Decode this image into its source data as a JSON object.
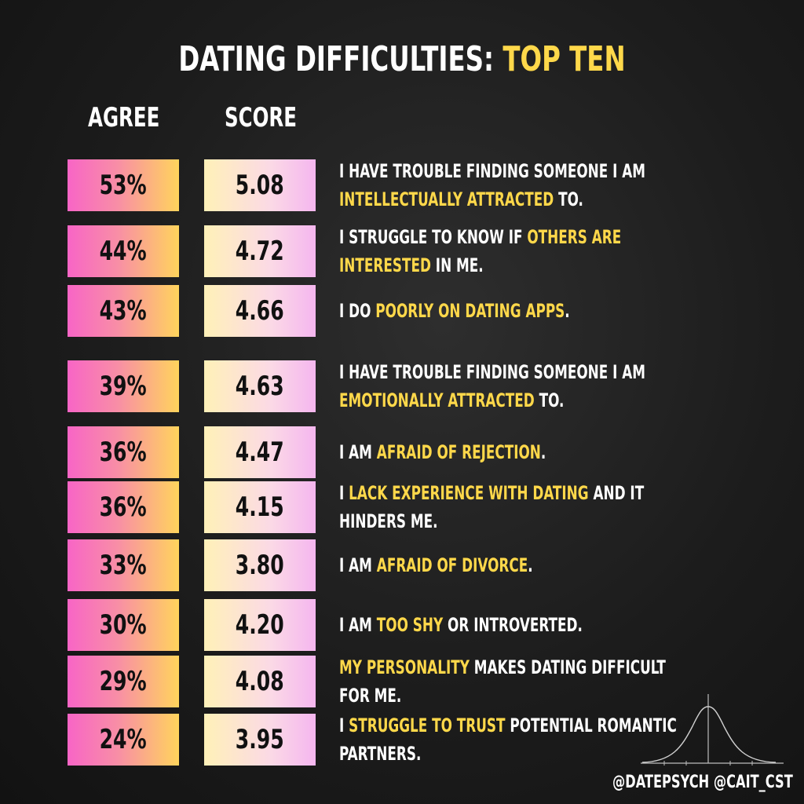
{
  "title": {
    "main": "DATING DIFFICULTIES:",
    "highlight": "TOP TEN"
  },
  "headers": {
    "agree": "AGREE",
    "score": "SCORE"
  },
  "colors": {
    "accent": "#ffd84a",
    "agree_gradient": [
      "#f865c6",
      "#ffd45c"
    ],
    "score_gradient": [
      "#fff1b8",
      "#f5b6ef"
    ]
  },
  "rows": [
    {
      "agree": "53%",
      "score": "5.08",
      "parts": [
        "I HAVE TROUBLE FINDING SOMEONE I AM ",
        "INTELLECTUALLY ATTRACTED",
        " TO."
      ]
    },
    {
      "agree": "44%",
      "score": "4.72",
      "parts": [
        "I STRUGGLE TO KNOW IF ",
        "OTHERS ARE INTERESTED",
        " IN ME."
      ]
    },
    {
      "agree": "43%",
      "score": "4.66",
      "parts": [
        "I DO ",
        "POORLY ON DATING APPS",
        "."
      ]
    },
    {
      "agree": "39%",
      "score": "4.63",
      "parts": [
        "I HAVE TROUBLE FINDING SOMEONE I AM ",
        "EMOTIONALLY ATTRACTED",
        " TO."
      ]
    },
    {
      "agree": "36%",
      "score": "4.47",
      "parts": [
        "I AM ",
        "AFRAID OF REJECTION",
        "."
      ]
    },
    {
      "agree": "36%",
      "score": "4.15",
      "parts": [
        "I ",
        "LACK EXPERIENCE WITH DATING",
        " AND IT HINDERS ME."
      ]
    },
    {
      "agree": "33%",
      "score": "3.80",
      "parts": [
        "I AM ",
        "AFRAID OF DIVORCE",
        "."
      ]
    },
    {
      "agree": "30%",
      "score": "4.20",
      "parts": [
        "I AM ",
        "TOO SHY",
        " OR INTROVERTED."
      ]
    },
    {
      "agree": "29%",
      "score": "4.08",
      "parts": [
        "",
        "MY PERSONALITY",
        " MAKES DATING DIFFICULT FOR ME."
      ]
    },
    {
      "agree": "24%",
      "score": "3.95",
      "parts": [
        "I ",
        "STRUGGLE TO TRUST",
        " POTENTIAL ROMANTIC PARTNERS."
      ]
    }
  ],
  "footer": "@DATEPSYCH @CAIT_CST",
  "decor": {
    "icon": "bell-curve-icon"
  }
}
